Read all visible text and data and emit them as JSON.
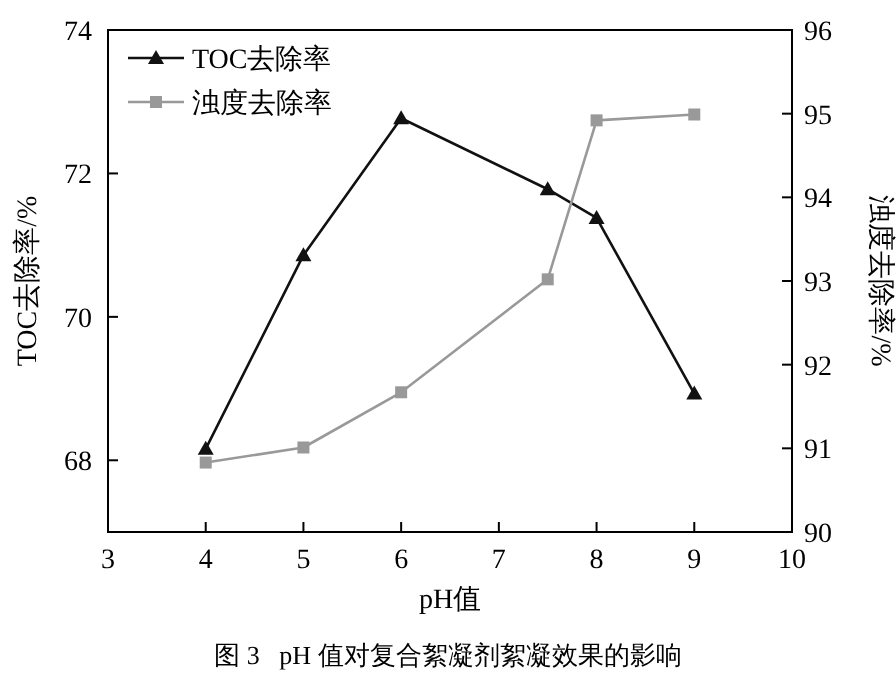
{
  "chart_data": {
    "type": "line",
    "xlabel": "pH值",
    "ylabel": "TOC去除率/%",
    "y2label": "浊度去除率/%",
    "x": [
      4,
      5,
      6,
      7.5,
      8,
      9
    ],
    "xlim": [
      3,
      10
    ],
    "xticks": [
      3,
      4,
      5,
      6,
      7,
      8,
      9,
      10
    ],
    "ylim": [
      67,
      74
    ],
    "yticks": [
      68,
      70,
      72,
      74
    ],
    "y2lim": [
      90,
      96
    ],
    "y2ticks": [
      90,
      91,
      92,
      93,
      94,
      95,
      96
    ],
    "series": [
      {
        "name": "TOC去除率",
        "color": "#111111",
        "marker": "triangle",
        "values": [
          68.16,
          70.86,
          72.77,
          71.78,
          71.38,
          68.93
        ]
      },
      {
        "name": "浊度去除率",
        "color": "#999999",
        "marker": "square",
        "axis": "y2",
        "values": [
          90.83,
          91.01,
          91.67,
          93.02,
          94.92,
          94.99
        ]
      }
    ],
    "legend": "top left",
    "grid": false,
    "annotations": [
      "图 3   pH 值对复合絮凝剂絮凝效果的影响"
    ]
  }
}
